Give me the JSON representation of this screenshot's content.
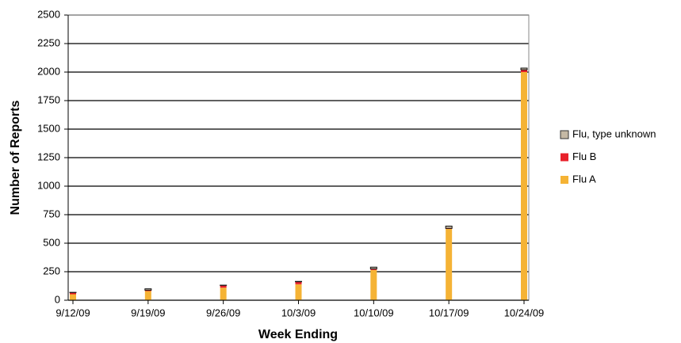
{
  "chart_data": {
    "type": "stacked-bar",
    "x_label": "Week Ending",
    "y_label": "Number of Reports",
    "categories": [
      "9/12/09",
      "9/19/09",
      "9/26/09",
      "10/3/09",
      "10/10/09",
      "10/17/09",
      "10/24/09"
    ],
    "series": [
      {
        "name": "Flu A",
        "color": "#f5b335",
        "values": [
          52,
          80,
          110,
          140,
          265,
          625,
          2000
        ]
      },
      {
        "name": "Flu B",
        "color": "#e8202a",
        "values": [
          15,
          8,
          20,
          22,
          10,
          5,
          20
        ]
      },
      {
        "name": "Flu, type unknown",
        "color": "#c5b9a5",
        "values": [
          2,
          12,
          2,
          3,
          15,
          20,
          15
        ]
      }
    ],
    "ylim": [
      0,
      2500
    ],
    "yticks": [
      0,
      250,
      500,
      750,
      1000,
      1250,
      1500,
      1750,
      2000,
      2250,
      2500
    ],
    "grid": true,
    "legend": "right"
  }
}
